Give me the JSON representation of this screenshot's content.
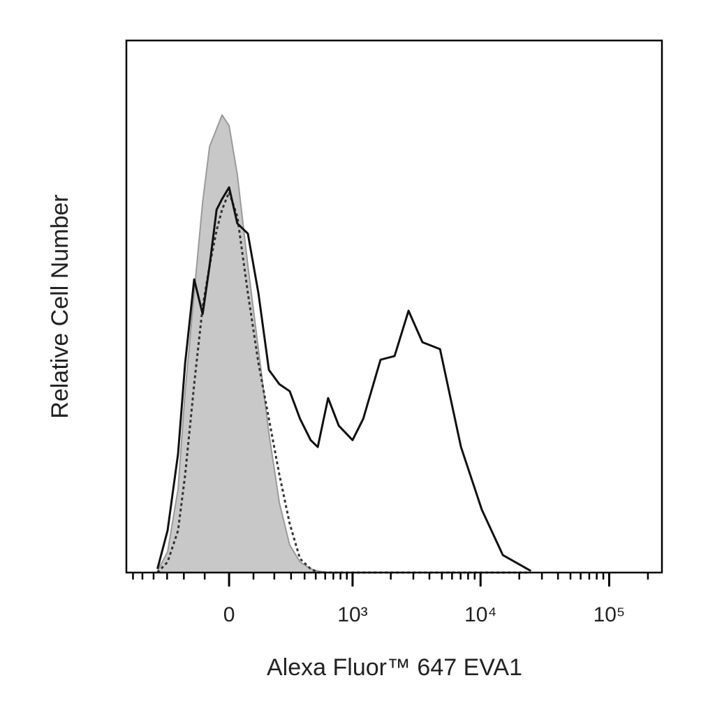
{
  "chart_data": {
    "type": "histogram-overlay",
    "xlabel": "Alexa Fluor™ 647 EVA1",
    "ylabel": "Relative Cell Number",
    "xscale": "biexponential",
    "linear_width": 222,
    "xlim": [
      -680,
      257000
    ],
    "ylim": [
      0,
      100
    ],
    "xticks": [
      0,
      {
        "value": 1000,
        "label": "10³"
      },
      {
        "value": 10000,
        "label": "10⁴"
      },
      {
        "value": 100000,
        "label": "10⁵"
      }
    ],
    "xminorticks": [
      -600,
      -500,
      -400,
      -300,
      -200,
      -100,
      100,
      200,
      300,
      400,
      500,
      600,
      700,
      800,
      900,
      2000,
      3000,
      4000,
      5000,
      6000,
      7000,
      8000,
      9000,
      20000,
      30000,
      40000,
      50000,
      60000,
      70000,
      80000,
      90000,
      200000
    ],
    "x": [
      -369,
      -297,
      -232,
      -193,
      -148,
      -109,
      -79,
      -50,
      -28,
      0,
      33,
      76,
      122,
      172,
      228,
      291,
      364,
      452,
      520,
      634,
      775,
      1000,
      1214,
      1662,
      2142,
      2750,
      3530,
      4840,
      7040,
      10230,
      14900,
      24600
    ],
    "series": [
      {
        "color": "#c8c8c8",
        "fill": true,
        "values": [
          0.3,
          3.9,
          15.7,
          34.1,
          52.5,
          69.6,
          80.1,
          83.4,
          86.0,
          84.0,
          74.8,
          57.7,
          42.0,
          26.2,
          13.1,
          5.2,
          2.0,
          0.7,
          0.3,
          0,
          0,
          0,
          0,
          0,
          0,
          0,
          0,
          0,
          0,
          0,
          0,
          0
        ]
      },
      {
        "color": "#333333",
        "dash": true,
        "values": [
          0,
          2.0,
          7.9,
          18.4,
          35.4,
          49.9,
          57.7,
          64.3,
          68.2,
          71.5,
          66.9,
          52.5,
          39.4,
          28.9,
          18.4,
          9.2,
          2.6,
          0.7,
          0,
          0,
          0,
          0,
          0,
          0,
          0,
          0,
          0,
          0,
          0,
          0,
          0,
          0
        ]
      },
      {
        "color": "#111111",
        "values": [
          0.7,
          7.9,
          22.3,
          39.4,
          55.1,
          48.6,
          57.7,
          68.2,
          70.2,
          72.4,
          65.6,
          63.7,
          52.5,
          38.1,
          35.4,
          34.1,
          28.9,
          24.9,
          23.6,
          32.8,
          27.6,
          24.9,
          28.9,
          40.0,
          40.7,
          49.2,
          43.3,
          42.0,
          23.6,
          11.8,
          3.3,
          0.3
        ]
      }
    ]
  }
}
